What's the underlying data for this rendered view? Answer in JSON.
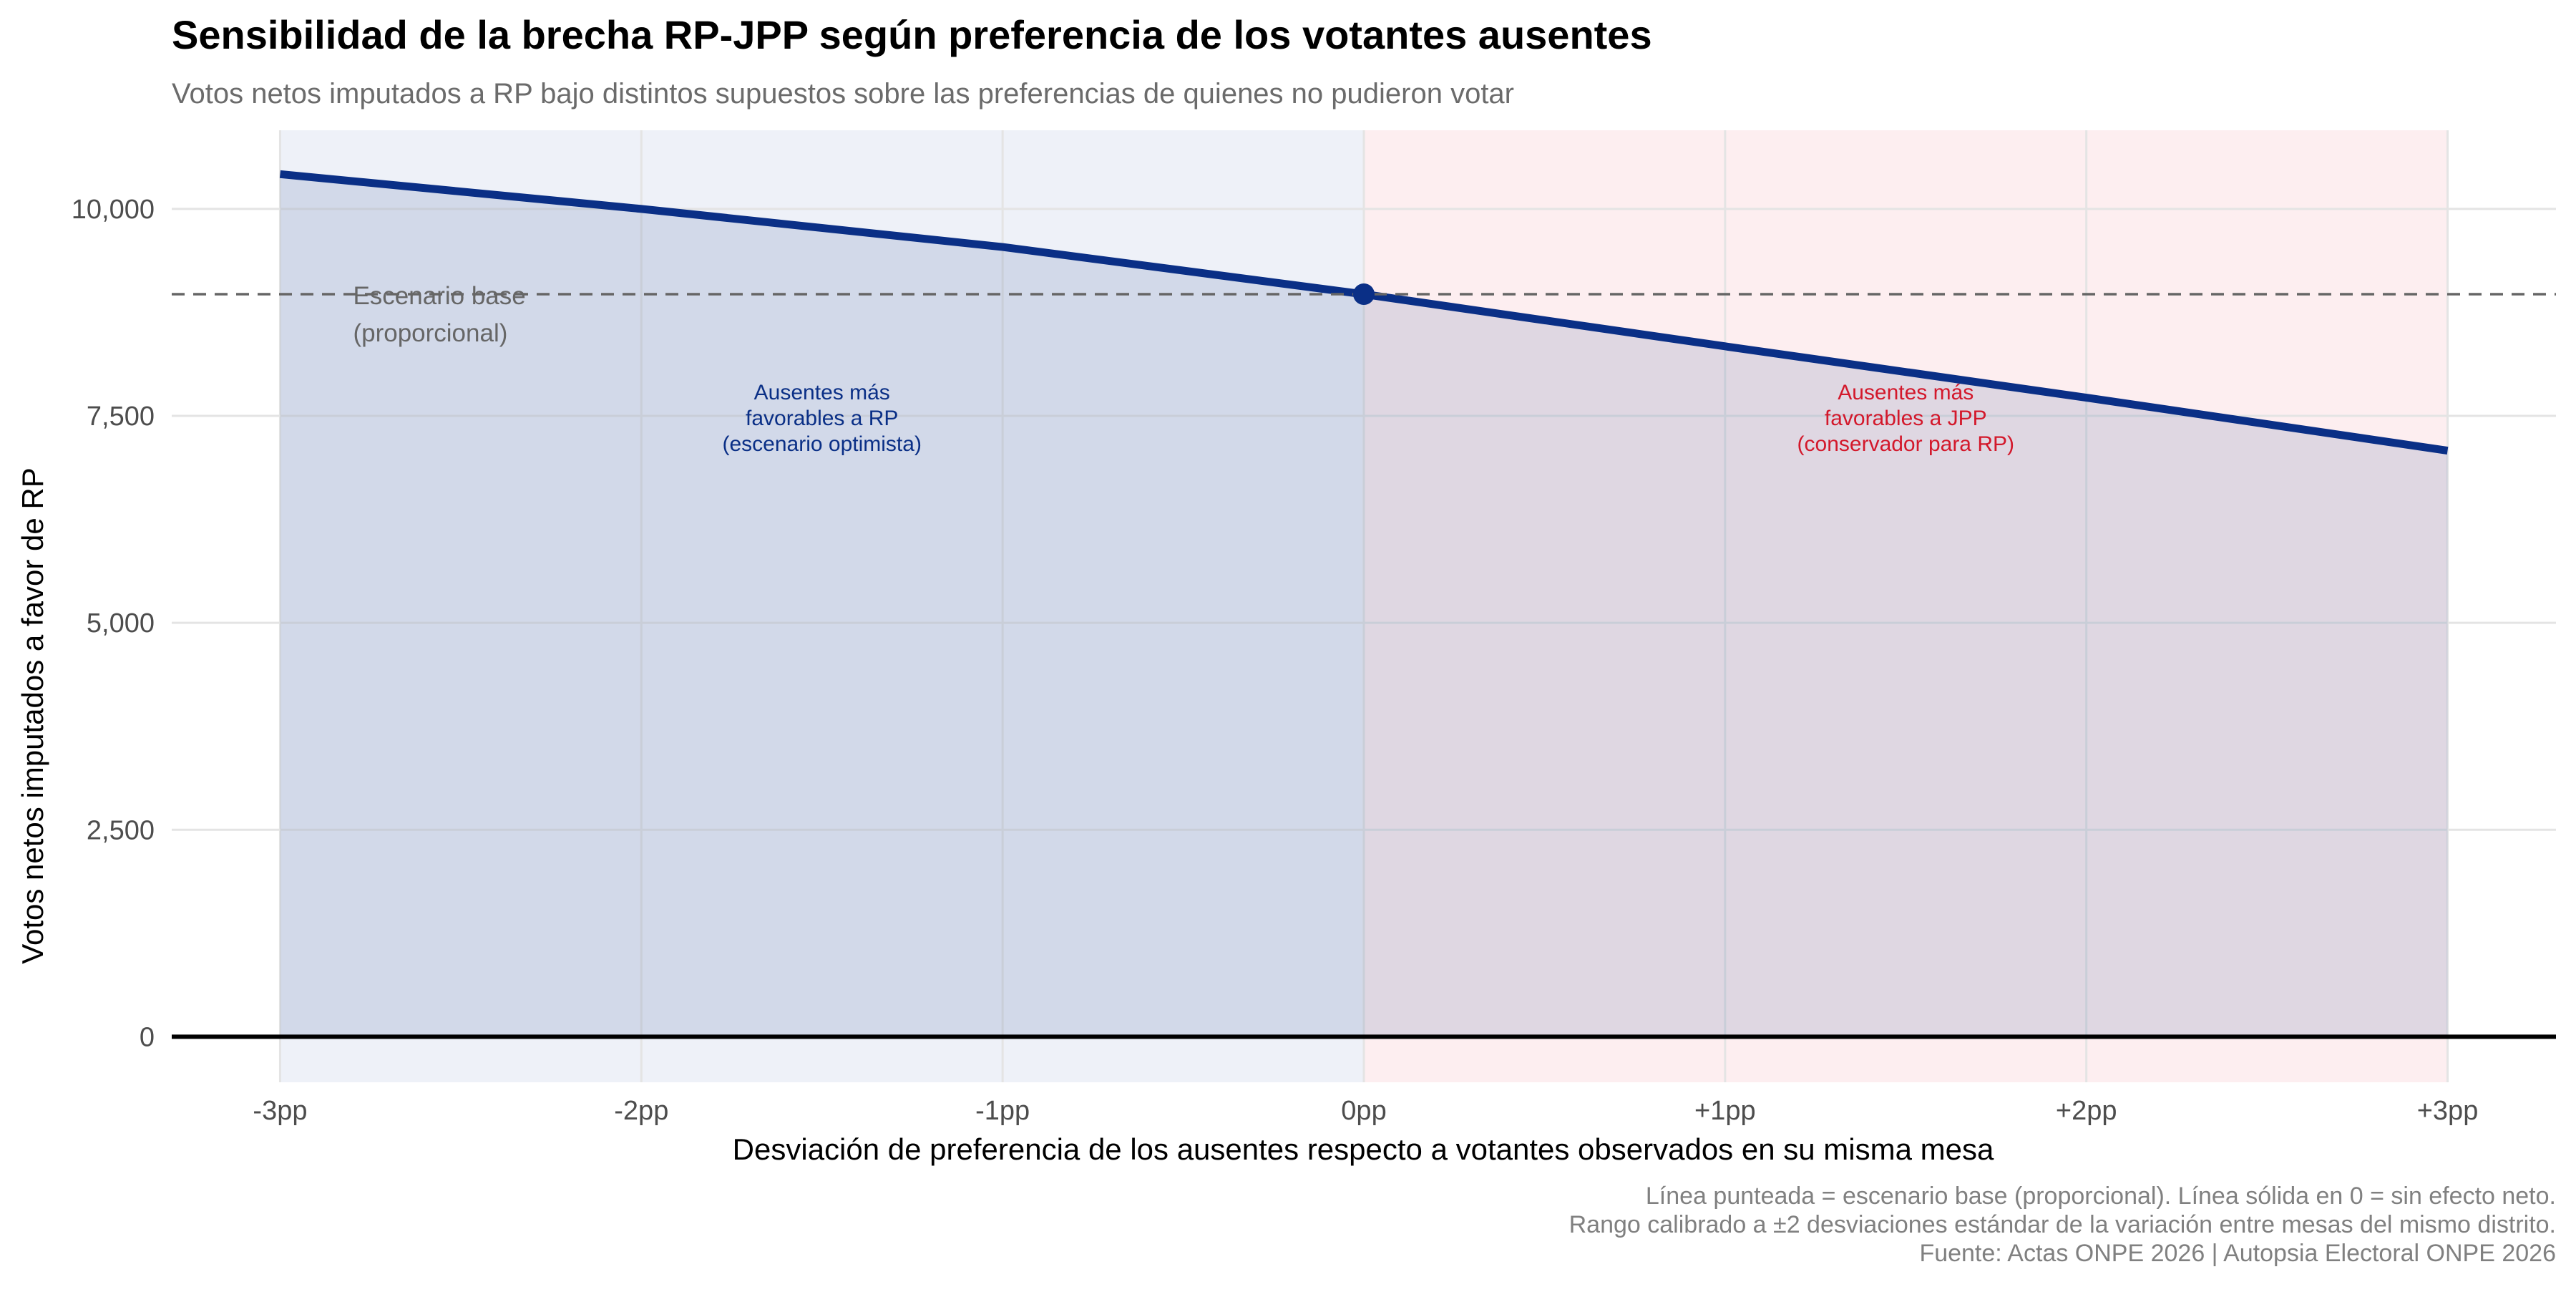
{
  "chart_data": {
    "type": "line",
    "title": "Sensibilidad de la brecha RP-JPP según preferencia de los votantes ausentes",
    "subtitle": "Votos netos imputados a RP bajo distintos supuestos sobre las preferencias de quienes no pudieron votar",
    "xlabel": "Desviación de preferencia de los ausentes respecto a votantes observados en su misma mesa",
    "ylabel": "Votos netos imputados a favor de RP",
    "x_ticks": [
      {
        "value": -3,
        "label": "-3pp"
      },
      {
        "value": -2,
        "label": "-2pp"
      },
      {
        "value": -1,
        "label": "-1pp"
      },
      {
        "value": 0,
        "label": "0pp"
      },
      {
        "value": 1,
        "label": "+1pp"
      },
      {
        "value": 2,
        "label": "+2pp"
      },
      {
        "value": 3,
        "label": "+3pp"
      }
    ],
    "y_ticks": [
      {
        "value": 0,
        "label": "0"
      },
      {
        "value": 2500,
        "label": "2,500"
      },
      {
        "value": 5000,
        "label": "5,000"
      },
      {
        "value": 7500,
        "label": "7,500"
      },
      {
        "value": 10000,
        "label": "10,000"
      }
    ],
    "xlim": [
      -3.3,
      3.3
    ],
    "ylim": [
      -550,
      10950
    ],
    "grid": true,
    "series": [
      {
        "x": [
          -3,
          -2,
          -1,
          0,
          1,
          2,
          3
        ],
        "values": [
          10420,
          10000,
          9540,
          8970,
          8340,
          7720,
          7080
        ],
        "color": "#0a2f86",
        "fill": true
      }
    ],
    "base_scenario": {
      "x": 0,
      "y": 8970,
      "label_line1": "Escenario base",
      "label_line2": "(proporcional)",
      "line_color": "#666666"
    },
    "regions": [
      {
        "x_range": [
          -3,
          0
        ],
        "color": "#eef1f8",
        "label_lines": [
          "Ausentes más",
          "favorables a RP",
          "(escenario optimista)"
        ],
        "label_color": "#0a2f86",
        "label_anchor": {
          "x": -1.5,
          "y": 7700
        }
      },
      {
        "x_range": [
          0,
          3
        ],
        "color": "#fdeef0",
        "label_lines": [
          "Ausentes más",
          "favorables a JPP",
          "(conservador para RP)"
        ],
        "label_color": "#d3182b",
        "label_anchor": {
          "x": 1.5,
          "y": 7700
        }
      }
    ],
    "zero_line": true,
    "caption_lines": [
      "Línea punteada = escenario base (proporcional). Línea sólida en 0 = sin efecto neto.",
      "Rango calibrado a ±2 desviaciones estándar de la variación entre mesas del mismo distrito.",
      "Fuente: Actas ONPE 2026 | Autopsia Electoral ONPE 2026"
    ]
  }
}
